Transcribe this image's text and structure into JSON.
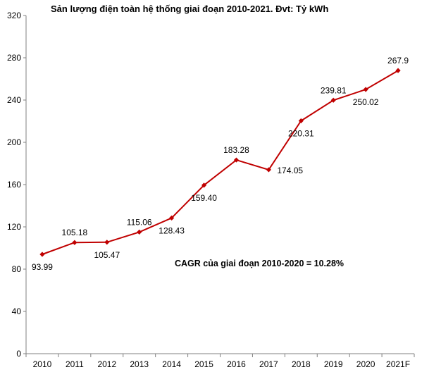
{
  "chart_data": {
    "type": "line",
    "title": "Sản lượng điện toàn hệ thống giai đoạn 2010-2021. Đvt: Tỷ kWh",
    "xlabel": "",
    "ylabel": "",
    "categories": [
      "2010",
      "2011",
      "2012",
      "2013",
      "2014",
      "2015",
      "2016",
      "2017",
      "2018",
      "2019",
      "2020",
      "2021F"
    ],
    "series": [
      {
        "values": [
          93.99,
          105.18,
          105.47,
          115.06,
          128.43,
          159.4,
          183.28,
          174.05,
          220.31,
          239.81,
          250.02,
          267.9
        ],
        "data_labels": [
          "93.99",
          "105.18",
          "105.47",
          "115.06",
          "128.43",
          "159.40",
          "183.28",
          "174.05",
          "220.31",
          "239.81",
          "250.02",
          "267.9"
        ],
        "label_positions": [
          "below",
          "above",
          "below",
          "above",
          "below",
          "below",
          "above",
          "right",
          "below",
          "above",
          "below",
          "above"
        ],
        "color": "#C00000",
        "marker": "diamond"
      }
    ],
    "ylim": [
      0,
      320
    ],
    "yticks": [
      "0",
      "40",
      "80",
      "120",
      "160",
      "200",
      "240",
      "280",
      "320"
    ],
    "grid": false,
    "legend": "none",
    "annotation": "CAGR của giai đoạn 2010-2020 = 10.28%"
  }
}
